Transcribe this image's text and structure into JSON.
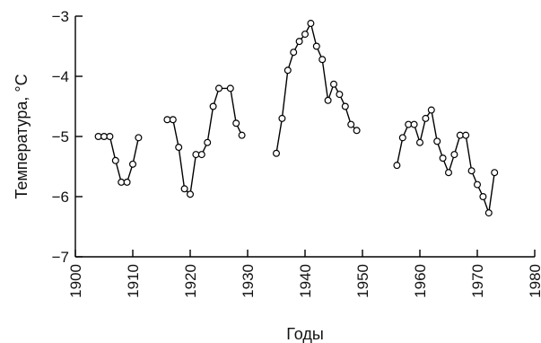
{
  "chart_data": {
    "type": "line",
    "xlabel": "Годы",
    "ylabel": "Температура, °C",
    "xlim": [
      1900,
      1980
    ],
    "ylim": [
      -7,
      -3
    ],
    "xticks": [
      1900,
      1910,
      1920,
      1930,
      1940,
      1950,
      1960,
      1970,
      1980
    ],
    "yticks": [
      -3,
      -4,
      -5,
      -6,
      -7
    ],
    "ytick_labels": [
      "−3",
      "−4",
      "−5",
      "−6",
      "−7"
    ],
    "grid": false,
    "series": [
      {
        "x": [
          1904,
          1905,
          1906,
          1907,
          1908,
          1909,
          1910,
          1911
        ],
        "y": [
          -5.0,
          -5.0,
          -5.0,
          -5.4,
          -5.76,
          -5.76,
          -5.46,
          -5.02
        ]
      },
      {
        "x": [
          1916,
          1917,
          1918,
          1919,
          1920,
          1921,
          1922,
          1923,
          1924,
          1925,
          1927,
          1928,
          1929
        ],
        "y": [
          -4.72,
          -4.72,
          -5.18,
          -5.87,
          -5.96,
          -5.3,
          -5.3,
          -5.1,
          -4.5,
          -4.2,
          -4.2,
          -4.78,
          -4.98
        ]
      },
      {
        "x": [
          1935,
          1936,
          1937,
          1938,
          1939,
          1940,
          1941,
          1942,
          1943,
          1944,
          1945,
          1946,
          1947,
          1948,
          1949
        ],
        "y": [
          -5.28,
          -4.7,
          -3.9,
          -3.6,
          -3.42,
          -3.3,
          -3.12,
          -3.5,
          -3.72,
          -4.4,
          -4.13,
          -4.3,
          -4.5,
          -4.8,
          -4.9
        ]
      },
      {
        "x": [
          1956,
          1957,
          1958,
          1959,
          1960,
          1961,
          1962,
          1963,
          1964,
          1965,
          1966,
          1967,
          1968,
          1969,
          1970,
          1971,
          1972,
          1973
        ],
        "y": [
          -5.48,
          -5.02,
          -4.8,
          -4.8,
          -5.1,
          -4.7,
          -4.56,
          -5.08,
          -5.36,
          -5.6,
          -5.3,
          -4.98,
          -4.98,
          -5.57,
          -5.8,
          -6.0,
          -6.27,
          -5.6
        ]
      }
    ]
  }
}
